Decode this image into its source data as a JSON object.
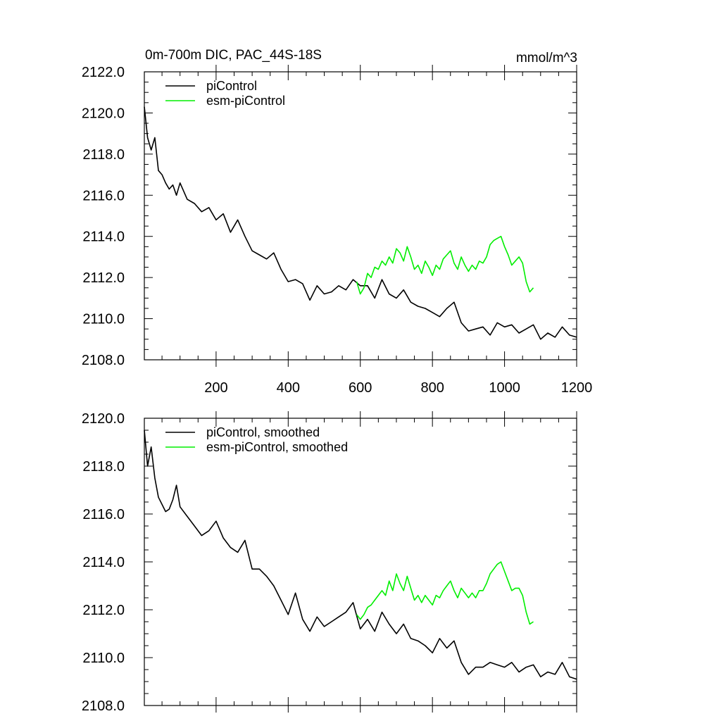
{
  "figure": {
    "title_left": "0m-700m DIC, PAC_44S-18S",
    "units": "mmol/m^3"
  },
  "colors": {
    "piControl": "#000000",
    "esm_piControl": "#00ee00",
    "frame": "#000000"
  },
  "chart_data": [
    {
      "type": "line",
      "title": "0m-700m DIC, PAC_44S-18S",
      "units": "mmol/m^3",
      "xlim": [
        1,
        1200
      ],
      "ylim": [
        2108,
        2122
      ],
      "x_ticks": [
        200,
        400,
        600,
        800,
        1000,
        1200
      ],
      "x_tick_labels": [
        "200",
        "400",
        "600",
        "800",
        "1000",
        "1200"
      ],
      "y_ticks": [
        2108,
        2110,
        2112,
        2114,
        2116,
        2118,
        2120,
        2122
      ],
      "y_tick_labels": [
        "2108.0",
        "2110.0",
        "2112.0",
        "2114.0",
        "2116.0",
        "2118.0",
        "2120.0",
        "2122.0"
      ],
      "legend": {
        "placement": "top-left",
        "entries": [
          "piControl",
          "esm-piControl"
        ]
      },
      "series": [
        {
          "name": "piControl",
          "color_key": "piControl",
          "x": [
            1,
            10,
            20,
            30,
            40,
            50,
            60,
            70,
            80,
            90,
            100,
            120,
            140,
            160,
            180,
            200,
            220,
            240,
            260,
            280,
            300,
            320,
            340,
            360,
            380,
            400,
            420,
            440,
            460,
            480,
            500,
            520,
            540,
            560,
            580,
            600,
            620,
            640,
            660,
            680,
            700,
            720,
            740,
            760,
            780,
            800,
            820,
            840,
            860,
            880,
            900,
            920,
            940,
            960,
            980,
            1000,
            1020,
            1040,
            1060,
            1080,
            1100,
            1120,
            1140,
            1160,
            1180,
            1200
          ],
          "y": [
            2120.3,
            2118.8,
            2118.2,
            2118.8,
            2117.2,
            2117.0,
            2116.6,
            2116.3,
            2116.5,
            2116.0,
            2116.6,
            2115.8,
            2115.6,
            2115.2,
            2115.4,
            2114.8,
            2115.1,
            2114.2,
            2114.8,
            2114.0,
            2113.3,
            2113.1,
            2112.9,
            2113.2,
            2112.4,
            2111.8,
            2111.9,
            2111.7,
            2110.9,
            2111.6,
            2111.2,
            2111.3,
            2111.6,
            2111.4,
            2111.9,
            2111.6,
            2111.6,
            2111.0,
            2111.9,
            2111.2,
            2111.0,
            2111.4,
            2110.8,
            2110.6,
            2110.5,
            2110.3,
            2110.1,
            2110.5,
            2110.8,
            2109.8,
            2109.4,
            2109.5,
            2109.6,
            2109.2,
            2109.8,
            2109.6,
            2109.7,
            2109.3,
            2109.5,
            2109.7,
            2109.0,
            2109.3,
            2109.1,
            2109.6,
            2109.2,
            2109.1
          ]
        },
        {
          "name": "esm-piControl",
          "color_key": "esm_piControl",
          "x": [
            590,
            600,
            610,
            620,
            630,
            640,
            650,
            660,
            670,
            680,
            690,
            700,
            710,
            720,
            730,
            740,
            750,
            760,
            770,
            780,
            790,
            800,
            810,
            820,
            830,
            840,
            850,
            860,
            870,
            880,
            890,
            900,
            910,
            920,
            930,
            940,
            950,
            960,
            970,
            980,
            990,
            1000,
            1010,
            1020,
            1030,
            1040,
            1050,
            1060,
            1070,
            1080
          ],
          "y": [
            2111.8,
            2111.2,
            2111.5,
            2112.2,
            2112.0,
            2112.5,
            2112.4,
            2112.8,
            2112.6,
            2113.0,
            2112.7,
            2113.4,
            2113.2,
            2112.8,
            2113.5,
            2113.0,
            2112.4,
            2112.6,
            2112.2,
            2112.8,
            2112.5,
            2112.1,
            2112.6,
            2112.4,
            2112.9,
            2113.1,
            2113.3,
            2112.7,
            2112.4,
            2113.0,
            2112.6,
            2112.3,
            2112.6,
            2112.4,
            2112.8,
            2112.7,
            2113.0,
            2113.6,
            2113.8,
            2113.9,
            2114.0,
            2113.5,
            2113.1,
            2112.6,
            2112.8,
            2113.0,
            2112.7,
            2111.8,
            2111.3,
            2111.5
          ]
        }
      ]
    },
    {
      "type": "line",
      "xlim": [
        1,
        1200
      ],
      "ylim": [
        2108,
        2120
      ],
      "x_ticks": [
        200,
        400,
        600,
        800,
        1000,
        1200
      ],
      "x_tick_labels": [],
      "y_ticks": [
        2108,
        2110,
        2112,
        2114,
        2116,
        2118,
        2120
      ],
      "y_tick_labels": [
        "2108.0",
        "2110.0",
        "2112.0",
        "2114.0",
        "2116.0",
        "2118.0",
        "2120.0"
      ],
      "legend": {
        "placement": "top-left",
        "entries": [
          "piControl, smoothed",
          "esm-piControl, smoothed"
        ]
      },
      "series": [
        {
          "name": "piControl, smoothed",
          "color_key": "piControl",
          "x": [
            1,
            10,
            20,
            30,
            40,
            50,
            60,
            70,
            80,
            90,
            100,
            120,
            140,
            160,
            180,
            200,
            220,
            240,
            260,
            280,
            300,
            320,
            340,
            360,
            380,
            400,
            420,
            440,
            460,
            480,
            500,
            520,
            540,
            560,
            580,
            600,
            620,
            640,
            660,
            680,
            700,
            720,
            740,
            760,
            780,
            800,
            820,
            840,
            860,
            880,
            900,
            920,
            940,
            960,
            980,
            1000,
            1020,
            1040,
            1060,
            1080,
            1100,
            1120,
            1140,
            1160,
            1180,
            1200
          ],
          "y": [
            2119.5,
            2118.0,
            2118.8,
            2117.5,
            2116.7,
            2116.4,
            2116.1,
            2116.2,
            2116.6,
            2117.2,
            2116.3,
            2115.9,
            2115.5,
            2115.1,
            2115.3,
            2115.7,
            2115.0,
            2114.6,
            2114.4,
            2114.9,
            2113.7,
            2113.7,
            2113.4,
            2113.0,
            2112.4,
            2111.8,
            2112.7,
            2111.6,
            2111.1,
            2111.7,
            2111.3,
            2111.5,
            2111.7,
            2111.9,
            2112.3,
            2111.2,
            2111.6,
            2111.1,
            2111.9,
            2111.4,
            2111.0,
            2111.4,
            2110.8,
            2110.7,
            2110.5,
            2110.2,
            2110.8,
            2110.4,
            2110.7,
            2109.8,
            2109.3,
            2109.6,
            2109.6,
            2109.8,
            2109.7,
            2109.6,
            2109.8,
            2109.4,
            2109.6,
            2109.7,
            2109.2,
            2109.4,
            2109.3,
            2109.8,
            2109.2,
            2109.1
          ]
        },
        {
          "name": "esm-piControl, smoothed",
          "color_key": "esm_piControl",
          "x": [
            590,
            600,
            610,
            620,
            630,
            640,
            650,
            660,
            670,
            680,
            690,
            700,
            710,
            720,
            730,
            740,
            750,
            760,
            770,
            780,
            790,
            800,
            810,
            820,
            830,
            840,
            850,
            860,
            870,
            880,
            890,
            900,
            910,
            920,
            930,
            940,
            950,
            960,
            970,
            980,
            990,
            1000,
            1010,
            1020,
            1030,
            1040,
            1050,
            1060,
            1070,
            1080
          ],
          "y": [
            2111.8,
            2111.6,
            2111.8,
            2112.1,
            2112.2,
            2112.4,
            2112.6,
            2112.8,
            2112.6,
            2113.2,
            2112.8,
            2113.5,
            2113.1,
            2112.8,
            2113.4,
            2112.9,
            2112.4,
            2112.6,
            2112.3,
            2112.6,
            2112.4,
            2112.2,
            2112.6,
            2112.5,
            2112.8,
            2113.0,
            2113.2,
            2112.8,
            2112.5,
            2112.9,
            2112.7,
            2112.5,
            2112.7,
            2112.5,
            2112.8,
            2112.8,
            2113.1,
            2113.5,
            2113.7,
            2113.9,
            2114.0,
            2113.6,
            2113.2,
            2112.8,
            2112.9,
            2112.9,
            2112.6,
            2111.9,
            2111.4,
            2111.5
          ]
        }
      ]
    }
  ]
}
